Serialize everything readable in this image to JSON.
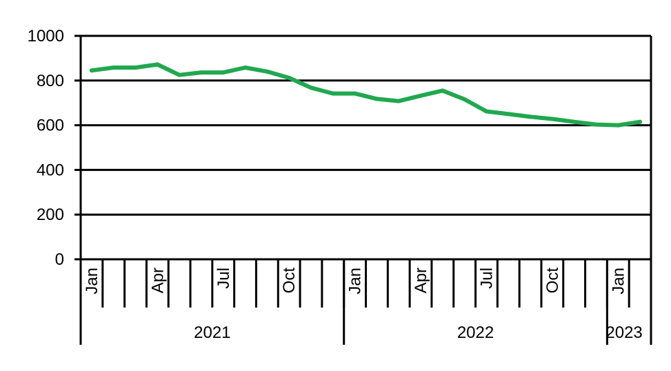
{
  "chart_data": {
    "type": "line",
    "title": "",
    "xlabel": "",
    "ylabel": "",
    "ylim": [
      0,
      1000
    ],
    "yticks": [
      "0",
      "200",
      "400",
      "600",
      "800",
      "1000"
    ],
    "grid": true,
    "line_color": "#21a84f",
    "axis_color": "#000000",
    "x": [
      "2021-01",
      "2021-02",
      "2021-03",
      "2021-04",
      "2021-05",
      "2021-06",
      "2021-07",
      "2021-08",
      "2021-09",
      "2021-10",
      "2021-11",
      "2021-12",
      "2022-01",
      "2022-02",
      "2022-03",
      "2022-04",
      "2022-05",
      "2022-06",
      "2022-07",
      "2022-08",
      "2022-09",
      "2022-10",
      "2022-11",
      "2022-12",
      "2023-01",
      "2023-02"
    ],
    "month_tick_labels": [
      {
        "month": "2021-01",
        "label": "Jan"
      },
      {
        "month": "2021-04",
        "label": "Apr"
      },
      {
        "month": "2021-07",
        "label": "Jul"
      },
      {
        "month": "2021-10",
        "label": "Oct"
      },
      {
        "month": "2022-01",
        "label": "Jan"
      },
      {
        "month": "2022-04",
        "label": "Apr"
      },
      {
        "month": "2022-07",
        "label": "Jul"
      },
      {
        "month": "2022-10",
        "label": "Oct"
      },
      {
        "month": "2023-01",
        "label": "Jan"
      }
    ],
    "year_groups": [
      {
        "label": "2021",
        "start": "2021-01",
        "end": "2021-12"
      },
      {
        "label": "2022",
        "start": "2022-01",
        "end": "2022-12"
      },
      {
        "label": "2023",
        "start": "2023-01",
        "end": "2023-02"
      }
    ],
    "series": [
      {
        "values": [
          845,
          858,
          858,
          872,
          825,
          836,
          836,
          858,
          840,
          812,
          768,
          742,
          742,
          718,
          708,
          732,
          755,
          716,
          662,
          650,
          638,
          628,
          615,
          603,
          600,
          615
        ]
      }
    ]
  }
}
